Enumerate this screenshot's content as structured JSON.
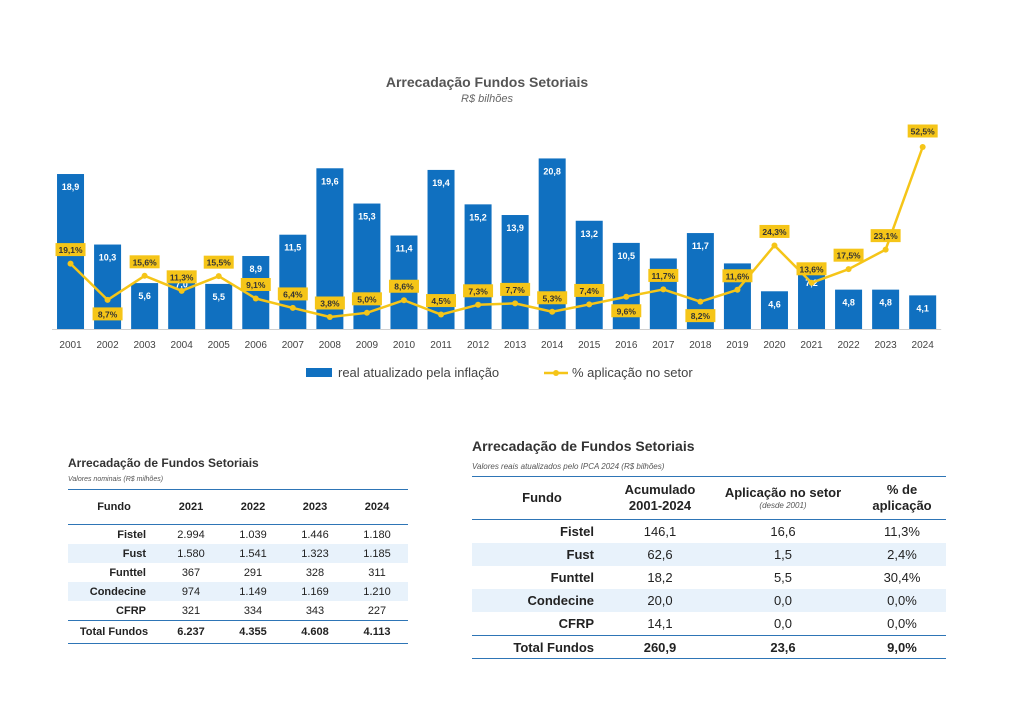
{
  "chart_data": {
    "type": "bar+line",
    "title": "Arrecadação Fundos Setoriais",
    "subtitle": "R$ bilhões",
    "categories": [
      "2001",
      "2002",
      "2003",
      "2004",
      "2005",
      "2006",
      "2007",
      "2008",
      "2009",
      "2010",
      "2011",
      "2012",
      "2013",
      "2014",
      "2015",
      "2016",
      "2017",
      "2018",
      "2019",
      "2020",
      "2021",
      "2022",
      "2023",
      "2024"
    ],
    "series": [
      {
        "name": "real atualizado pela inflação",
        "type": "bar",
        "color": "#1070c0",
        "values": [
          18.9,
          10.3,
          5.6,
          7.0,
          5.5,
          8.9,
          11.5,
          19.6,
          15.3,
          11.4,
          19.4,
          15.2,
          13.9,
          20.8,
          13.2,
          10.5,
          8.6,
          11.7,
          8.0,
          4.6,
          7.2,
          4.8,
          4.8,
          4.1
        ],
        "labels": [
          "18,9",
          "10,3",
          "5,6",
          "7,0",
          "5,5",
          "8,9",
          "11,5",
          "19,6",
          "15,3",
          "11,4",
          "19,4",
          "15,2",
          "13,9",
          "20,8",
          "13,2",
          "10,5",
          "",
          "11,7",
          "",
          "4,6",
          "7,2",
          "4,8",
          "4,8",
          "4,1"
        ]
      },
      {
        "name": "% aplicação no setor",
        "type": "line",
        "color": "#f5c518",
        "values": [
          19.1,
          8.7,
          15.6,
          11.3,
          15.5,
          9.1,
          6.4,
          3.8,
          5.0,
          8.6,
          4.5,
          7.3,
          7.7,
          5.3,
          7.4,
          9.6,
          11.7,
          8.2,
          11.6,
          24.3,
          13.6,
          17.5,
          23.1,
          52.5
        ],
        "labels": [
          "19,1%",
          "8,7%",
          "15,6%",
          "11,3%",
          "15,5%",
          "9,1%",
          "6,4%",
          "3,8%",
          "5,0%",
          "8,6%",
          "4,5%",
          "7,3%",
          "7,7%",
          "5,3%",
          "7,4%",
          "9,6%",
          "11,7%",
          "8,2%",
          "11,6%",
          "24,3%",
          "13,6%",
          "17,5%",
          "23,1%",
          "52,5%"
        ]
      }
    ],
    "legend_position": "bottom"
  },
  "table_nominal": {
    "title": "Arrecadação de Fundos Setoriais",
    "subtitle": "Valores nominais (R$ milhões)",
    "headers": [
      "Fundo",
      "2021",
      "2022",
      "2023",
      "2024"
    ],
    "rows": [
      [
        "Fistel",
        "2.994",
        "1.039",
        "1.446",
        "1.180"
      ],
      [
        "Fust",
        "1.580",
        "1.541",
        "1.323",
        "1.185"
      ],
      [
        "Funttel",
        "367",
        "291",
        "328",
        "311"
      ],
      [
        "Condecine",
        "974",
        "1.149",
        "1.169",
        "1.210"
      ],
      [
        "CFRP",
        "321",
        "334",
        "343",
        "227"
      ]
    ],
    "total": [
      "Total Fundos",
      "6.237",
      "4.355",
      "4.608",
      "4.113"
    ]
  },
  "table_real": {
    "title": "Arrecadação de Fundos Setoriais",
    "subtitle": "Valores reais atualizados pelo IPCA 2024 (R$ bilhões)",
    "headers": [
      "Fundo",
      "Acumulado 2001-2024",
      "Aplicação no setor",
      "% de aplicação"
    ],
    "header_note": "(desde 2001)",
    "rows": [
      [
        "Fistel",
        "146,1",
        "16,6",
        "11,3%"
      ],
      [
        "Fust",
        "62,6",
        "1,5",
        "2,4%"
      ],
      [
        "Funttel",
        "18,2",
        "5,5",
        "30,4%"
      ],
      [
        "Condecine",
        "20,0",
        "0,0",
        "0,0%"
      ],
      [
        "CFRP",
        "14,1",
        "0,0",
        "0,0%"
      ]
    ],
    "total": [
      "Total Fundos",
      "260,9",
      "23,6",
      "9,0%"
    ]
  }
}
